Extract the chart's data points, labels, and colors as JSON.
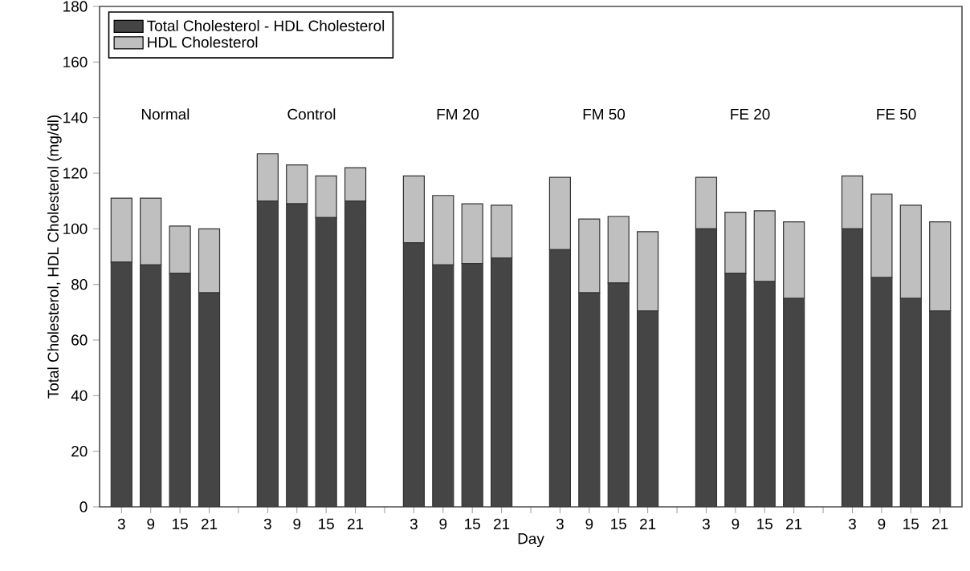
{
  "chart_data": {
    "type": "bar",
    "stacked": true,
    "xlabel": "Day",
    "ylabel": "Total Cholesterol, HDL Cholesterol (mg/dl)",
    "categories": [
      "3",
      "9",
      "15",
      "21",
      null,
      "3",
      "9",
      "15",
      "21",
      null,
      "3",
      "9",
      "15",
      "21",
      null,
      "3",
      "9",
      "15",
      "21",
      null,
      "3",
      "9",
      "15",
      "21",
      null,
      "3",
      "9",
      "15",
      "21"
    ],
    "series": [
      {
        "name": "Total Cholesterol - HDL Cholesterol",
        "color": "#454545",
        "values": [
          88,
          87,
          84,
          77,
          null,
          110,
          109,
          104,
          110,
          null,
          95,
          87,
          87.5,
          89.5,
          null,
          92.5,
          77,
          80.5,
          70.5,
          null,
          100,
          84,
          81,
          75,
          null,
          100,
          82.5,
          75,
          70.5
        ]
      },
      {
        "name": "HDL Cholesterol",
        "color": "#bfbfbf",
        "values": [
          23,
          24,
          17,
          23,
          null,
          17,
          14,
          15,
          12,
          null,
          24,
          25,
          21.5,
          19,
          null,
          26,
          26.5,
          24,
          28.5,
          null,
          18.5,
          22,
          25.5,
          27.5,
          null,
          19,
          30,
          33.5,
          32
        ]
      }
    ],
    "ylim": [
      0,
      180
    ],
    "yticks": [
      0,
      20,
      40,
      60,
      80,
      100,
      120,
      140,
      160,
      180
    ],
    "legend": "top left",
    "grid": false,
    "annotations": [
      "Normal",
      "Control",
      "FM 20",
      "FM 50",
      "FE 20",
      "FE 50"
    ]
  }
}
